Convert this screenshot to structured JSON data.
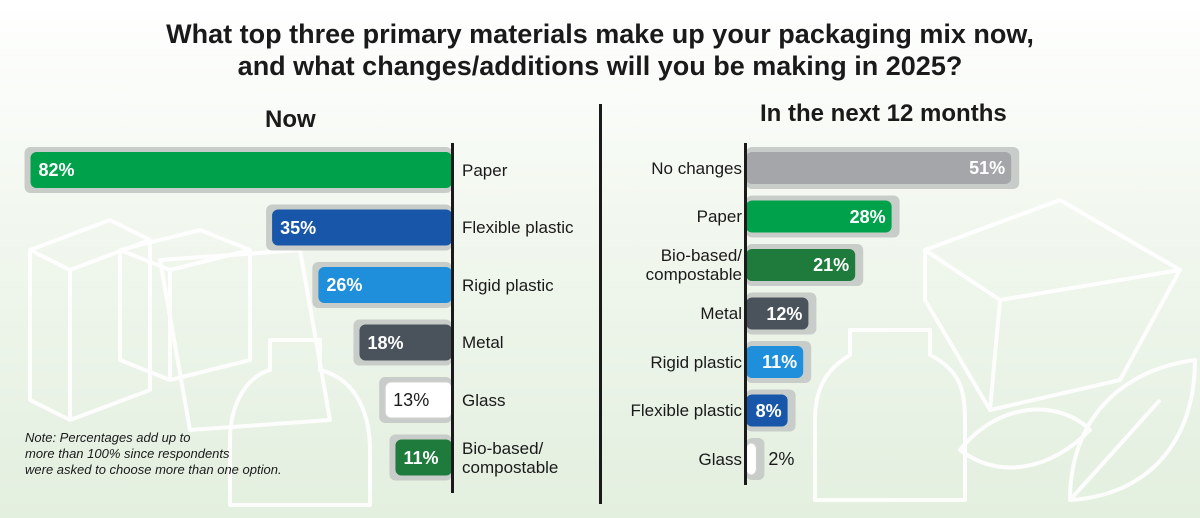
{
  "title_lines": [
    "What top three primary materials make up your packaging mix now,",
    "and what changes/additions will you be making in 2025?"
  ],
  "note_lines": [
    "Note: Percentages add up to",
    "more than 100% since respondents",
    "were asked to choose more than one option."
  ],
  "chart_data": [
    {
      "type": "bar",
      "orientation": "horizontal",
      "title": "Now",
      "xlim": [
        0,
        100
      ],
      "grid": false,
      "categories": [
        "Paper",
        "Flexible plastic",
        "Rigid plastic",
        "Metal",
        "Glass",
        "Bio-based/\ncompostable"
      ],
      "values": [
        82,
        35,
        26,
        18,
        13,
        11
      ],
      "data_labels": [
        "82%",
        "35%",
        "26%",
        "18%",
        "13%",
        "11%"
      ],
      "colors": [
        "#00a14b",
        "#1756a9",
        "#1f8fdb",
        "#4a535c",
        "#ffffff",
        "#1e7b3c"
      ]
    },
    {
      "type": "bar",
      "orientation": "horizontal",
      "title": "In the next 12 months",
      "xlim": [
        0,
        100
      ],
      "grid": false,
      "categories": [
        "No changes",
        "Paper",
        "Bio-based/\ncompostable",
        "Metal",
        "Rigid plastic",
        "Flexible plastic",
        "Glass"
      ],
      "values": [
        51,
        28,
        21,
        12,
        11,
        8,
        2
      ],
      "data_labels": [
        "51%",
        "28%",
        "21%",
        "12%",
        "11%",
        "8%",
        "2%"
      ],
      "colors": [
        "#a4a6a9",
        "#00a14b",
        "#1e7b3c",
        "#4a535c",
        "#1f8fdb",
        "#1756a9",
        "#ffffff"
      ]
    }
  ]
}
